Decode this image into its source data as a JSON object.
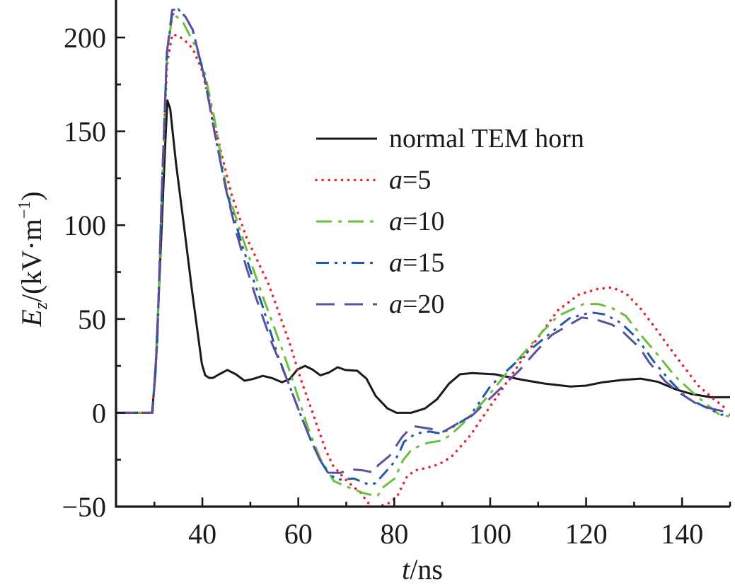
{
  "chart_data": {
    "type": "line",
    "title": "",
    "xlabel": "t/ns",
    "xlabel_italic_part": "t",
    "xlabel_rest": "/ns",
    "ylabel": "E_z/(kV·m^-1)",
    "ylabel_parts": {
      "main": "E",
      "sub": "z",
      "unit_open": "/(kV·m",
      "sup": "−1",
      "unit_close": ")"
    },
    "xlim": [
      22,
      150
    ],
    "ylim": [
      -50,
      220
    ],
    "xticks": [
      40,
      60,
      80,
      100,
      120,
      140
    ],
    "xtick_labels": [
      "40",
      "60",
      "80",
      "100",
      "120",
      "140"
    ],
    "x_minor_ticks": [
      30,
      50,
      70,
      90,
      110,
      130,
      150
    ],
    "yticks": [
      -50,
      0,
      50,
      100,
      150,
      200
    ],
    "ytick_labels": [
      "−50",
      "0",
      "50",
      "100",
      "150",
      "200"
    ],
    "y_minor_ticks": [
      -25,
      25,
      75,
      125,
      175
    ],
    "grid": false,
    "legend_position": "center-right",
    "series": [
      {
        "name": "normal TEM horn",
        "legend_italic": "",
        "legend_rest": "normal TEM horn",
        "color": "#1a1a1a",
        "style": "solid",
        "x": [
          22,
          29.5,
          30.2,
          31.2,
          32.2,
          32.7,
          33.3,
          34.5,
          36.4,
          37.9,
          38.9,
          39.9,
          40.6,
          41.4,
          42.2,
          43.5,
          45.2,
          47.0,
          48.8,
          50.5,
          52.6,
          54.5,
          56.6,
          58.2,
          59.8,
          61.4,
          63.0,
          64.6,
          66.4,
          68.2,
          69.8,
          72.3,
          74.2,
          76.1,
          78.6,
          80.5,
          83.5,
          86.4,
          88.9,
          91.4,
          93.7,
          96.2,
          101,
          106.9,
          111.5,
          116.7,
          120,
          123.5,
          127.5,
          131.4,
          135,
          138.7,
          142,
          146,
          150
        ],
        "y": [
          0,
          0,
          20,
          80,
          140,
          166.5,
          162,
          133,
          95,
          64,
          45,
          26,
          20,
          18.6,
          18.6,
          20.5,
          22.8,
          20.5,
          17.1,
          18,
          19.7,
          18.5,
          16.3,
          18,
          23,
          25,
          23,
          20,
          21.5,
          24.3,
          22.8,
          22.4,
          18.2,
          9,
          2.3,
          0,
          0,
          2.3,
          7.2,
          15.5,
          20.5,
          21.2,
          20.5,
          17.5,
          15.5,
          14,
          14.5,
          16.3,
          17.5,
          18.2,
          16.5,
          12.5,
          10,
          8.3,
          8.3
        ]
      },
      {
        "name": "a=5",
        "legend_italic": "a",
        "legend_rest": "=5",
        "color": "#e8262c",
        "style": "dotted",
        "x": [
          22,
          29.6,
          30.6,
          31.6,
          32.6,
          33.7,
          35.0,
          36.5,
          38.0,
          40.0,
          42.0,
          44.0,
          46.0,
          49.1,
          51.5,
          53.8,
          56.0,
          58.2,
          60.5,
          62.6,
          63.8,
          65.7,
          67.2,
          69.6,
          71.5,
          73.0,
          74.5,
          76.1,
          77.0,
          79.2,
          80.7,
          82.7,
          84.4,
          87.0,
          89.4,
          91.9,
          93.9,
          95.9,
          97.6,
          101,
          103.9,
          107.3,
          110.8,
          114.1,
          118.5,
          122.4,
          125.4,
          128.3,
          131.2,
          134.2,
          137.1,
          140,
          143.4,
          146.3,
          149.5
        ],
        "y": [
          0,
          0,
          38,
          120,
          185,
          201.5,
          201,
          198,
          194,
          182,
          160,
          138,
          117,
          94,
          81,
          68.6,
          53,
          37,
          18,
          3,
          -6,
          -19.7,
          -28,
          -35,
          -39.5,
          -42.5,
          -47.8,
          -52,
          -49.7,
          -47.8,
          -44,
          -33.8,
          -30.7,
          -29.2,
          -27.3,
          -23.5,
          -17.8,
          -12,
          -5.3,
          7,
          18,
          30.7,
          43,
          54.6,
          63,
          66,
          66.8,
          63.7,
          56,
          46,
          35.7,
          25.8,
          14.4,
          8,
          1.5
        ]
      },
      {
        "name": "a=10",
        "legend_italic": "a",
        "legend_rest": "=10",
        "color": "#6abf3f",
        "style": "dash-dot",
        "x": [
          22,
          29.6,
          30.6,
          31.6,
          32.6,
          33.5,
          34.4,
          36.0,
          38.6,
          40.5,
          42.5,
          45.0,
          47.5,
          50.0,
          52.6,
          54.6,
          56.7,
          58.5,
          60.0,
          62.0,
          64.5,
          67.4,
          70.3,
          73.8,
          76.5,
          77.5,
          80.1,
          81.8,
          83.7,
          87.0,
          89.9,
          91.8,
          94.2,
          96.5,
          99.6,
          104.4,
          107.9,
          110.8,
          114.1,
          119.5,
          122.4,
          125.3,
          128.3,
          131.2,
          135,
          138.6,
          143,
          147.8,
          150
        ],
        "y": [
          0,
          0,
          38,
          120,
          190,
          208,
          211.7,
          208,
          195,
          181,
          157,
          120,
          100,
          81,
          62,
          48,
          33.4,
          20,
          8,
          -8,
          -24,
          -36.4,
          -39.5,
          -43,
          -44.4,
          -40,
          -35,
          -25.4,
          -19.3,
          -16,
          -14.8,
          -11.7,
          -6,
          0,
          9,
          24.3,
          34.5,
          43,
          51.6,
          58,
          58,
          56,
          51.6,
          42,
          30.7,
          19.3,
          9,
          -1,
          -2
        ]
      },
      {
        "name": "a=15",
        "legend_italic": "a",
        "legend_rest": "=15",
        "color": "#1f5aa8",
        "style": "dash-dot-dot",
        "x": [
          22,
          29.6,
          30.6,
          31.6,
          32.6,
          33.7,
          35.0,
          36.5,
          38.0,
          40.5,
          42.5,
          45.0,
          48.2,
          50.5,
          52.6,
          55.7,
          57.7,
          60.0,
          62.5,
          64.5,
          66.2,
          68.1,
          71.6,
          74.7,
          76.1,
          79.6,
          81.0,
          82.0,
          84.5,
          87.4,
          89.6,
          91.3,
          95.7,
          100.1,
          104.9,
          108.3,
          112.7,
          116.6,
          121,
          124,
          127.3,
          130.7,
          134.2,
          137.1,
          140.9,
          144.9,
          148.2,
          150
        ],
        "y": [
          0,
          0,
          38,
          122,
          192,
          212,
          215,
          211,
          204,
          178,
          150,
          118,
          90,
          72,
          56.5,
          30.7,
          17.5,
          2,
          -14,
          -25,
          -32,
          -35.7,
          -35,
          -38.3,
          -37.5,
          -27.5,
          -21.6,
          -15.5,
          -11,
          -10,
          -11,
          -9,
          -2,
          14.4,
          25.8,
          33.5,
          42.8,
          50.5,
          53.5,
          52.4,
          47.8,
          39.5,
          27,
          18.2,
          8,
          3,
          -1,
          -1
        ]
      },
      {
        "name": "a=20",
        "legend_italic": "a",
        "legend_rest": "=20",
        "color": "#5a4fa0",
        "style": "long-dash",
        "x": [
          22,
          29.6,
          30.6,
          31.6,
          32.6,
          33.7,
          35.0,
          36.5,
          38.0,
          40.5,
          42.5,
          45.0,
          47.1,
          49.0,
          51.1,
          54.5,
          57.7,
          60.0,
          62.5,
          64.5,
          66.2,
          68.8,
          70.8,
          73.5,
          76.0,
          76.6,
          79.0,
          81.6,
          83.8,
          87.4,
          90.3,
          93.0,
          96.2,
          100.1,
          106,
          109.5,
          112.8,
          115.8,
          119.1,
          122.1,
          125.4,
          127.8,
          131.2,
          133.1,
          136.5,
          139.5,
          143.4,
          146,
          150
        ],
        "y": [
          0,
          0,
          38,
          122,
          192,
          214.7,
          215,
          211,
          204,
          178,
          150,
          118,
          96,
          79,
          62,
          37,
          17.5,
          2,
          -14,
          -25,
          -31.9,
          -32,
          -30,
          -30.7,
          -31.9,
          -28,
          -23,
          -13,
          -7,
          -8.5,
          -10,
          -6,
          -1.5,
          8,
          22.4,
          32.6,
          41.4,
          45.9,
          50.8,
          49.7,
          47,
          42.8,
          34.5,
          27,
          16.7,
          10.6,
          4.2,
          2.3,
          0
        ]
      }
    ]
  }
}
